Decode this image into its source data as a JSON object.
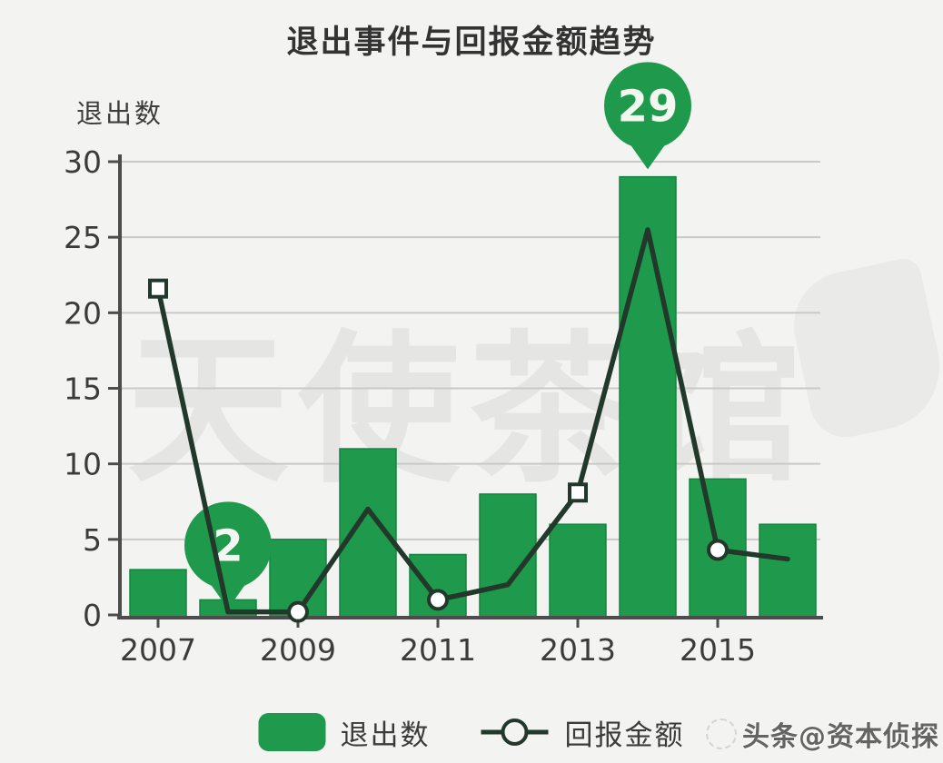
{
  "title": "退出事件与回报金额趋势",
  "y_axis_title": "退出数",
  "legend": {
    "bars": "退出数",
    "line": "回报金额"
  },
  "watermark": {
    "center": "天使茶馆",
    "footer": "头条@资本侦探"
  },
  "colors": {
    "bar": "#1f9a4c",
    "bar_edge": "#148540",
    "line": "#22382b",
    "marker_fill": "#ffffff",
    "grid": "#c9c9c7",
    "axis": "#4c4c4c",
    "text": "#3b3b3b",
    "balloon": "#1f9a4c",
    "balloon_text": "#f2f7f0"
  },
  "chart_data": {
    "type": "bar+line",
    "categories": [
      2007,
      2008,
      2009,
      2010,
      2011,
      2012,
      2013,
      2014,
      2015,
      2016
    ],
    "x_tick_labels": [
      "2007",
      "2009",
      "2011",
      "2013",
      "2015"
    ],
    "y_ticks": [
      0,
      5,
      10,
      15,
      20,
      25,
      30
    ],
    "ylim": [
      0,
      30
    ],
    "grid": true,
    "legend_position": "bottom",
    "series": [
      {
        "name": "退出数",
        "type": "bar",
        "values": [
          3,
          1,
          5,
          11,
          4,
          8,
          6,
          29,
          9,
          6
        ]
      },
      {
        "name": "回报金额",
        "type": "line",
        "values": [
          21.6,
          0.2,
          0.2,
          7,
          1,
          2,
          8.1,
          25.5,
          4.3,
          3.7
        ],
        "marker_years": [
          2007,
          2009,
          2011,
          2013,
          2015
        ],
        "marker_shapes": [
          "square",
          "circle",
          "circle",
          "square",
          "circle"
        ]
      }
    ],
    "annotations": [
      {
        "year": 2008,
        "label": "2",
        "anchor": 0.4
      },
      {
        "year": 2014,
        "label": "29",
        "anchor": 29.5
      }
    ]
  }
}
